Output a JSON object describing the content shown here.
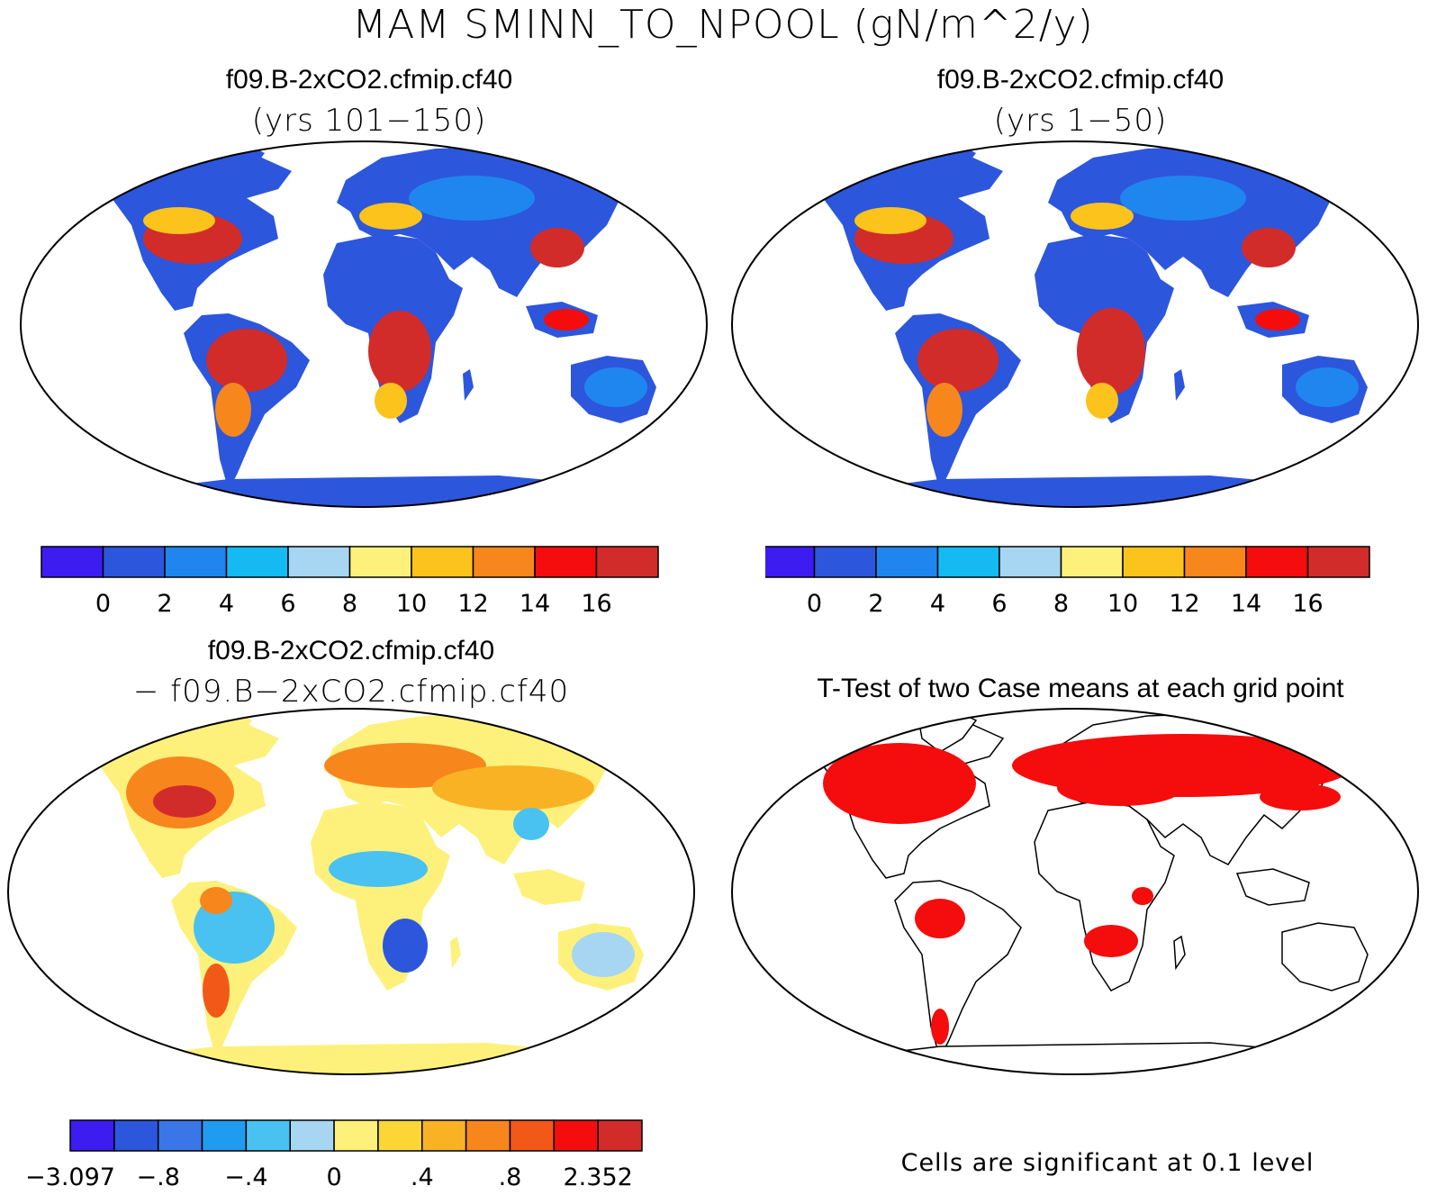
{
  "title": "MAM SMINN_TO_NPOOL (gN/m^2/y)",
  "panels": [
    {
      "id": "top-left",
      "case_name": "f09.B-2xCO2.cfmip.cf40",
      "subtitle": "(yrs 101−150)",
      "colorbar": {
        "colors": [
          "#3d1cf2",
          "#2c56dc",
          "#1f86ef",
          "#16baf3",
          "#a6d6f2",
          "#fdf17c",
          "#fbc31b",
          "#f7861d",
          "#f40d0c",
          "#d22c2a"
        ],
        "labels": [
          "0",
          "2",
          "4",
          "6",
          "8",
          "10",
          "12",
          "14",
          "16"
        ]
      }
    },
    {
      "id": "top-right",
      "case_name": "f09.B-2xCO2.cfmip.cf40",
      "subtitle": "(yrs 1−50)",
      "colorbar": {
        "colors": [
          "#3d1cf2",
          "#2c56dc",
          "#1f86ef",
          "#16baf3",
          "#a6d6f2",
          "#fdf17c",
          "#fbc31b",
          "#f7861d",
          "#f40d0c",
          "#d22c2a"
        ],
        "labels": [
          "0",
          "2",
          "4",
          "6",
          "8",
          "10",
          "12",
          "14",
          "16"
        ]
      }
    },
    {
      "id": "bottom-left",
      "case_name": "f09.B-2xCO2.cfmip.cf40",
      "subtitle": "− f09.B−2xCO2.cfmip.cf40",
      "colorbar": {
        "colors": [
          "#3d1cf2",
          "#2c56dc",
          "#3a76e8",
          "#1f9cf0",
          "#49c2f1",
          "#a6d6f2",
          "#fdf17c",
          "#fbd634",
          "#f9b224",
          "#f7861d",
          "#f25817",
          "#f40d0c",
          "#d22c2a"
        ],
        "labels": [
          "−3.097",
          "−.8",
          "−.4",
          "0",
          ".4",
          ".8",
          "2.352"
        ]
      }
    },
    {
      "id": "bottom-right",
      "title": "T-Test of two Case means at each grid point",
      "note": "Cells are significant at 0.1 level",
      "significant_color": "#f40d0c"
    }
  ]
}
